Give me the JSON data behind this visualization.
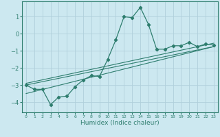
{
  "xlabel": "Humidex (Indice chaleur)",
  "ylabel": "",
  "bg_color": "#cce8f0",
  "grid_color": "#b0d0db",
  "line_color": "#2e7d6e",
  "xlim": [
    -0.5,
    23.5
  ],
  "ylim": [
    -4.6,
    1.9
  ],
  "yticks": [
    1,
    0,
    -1,
    -2,
    -3,
    -4
  ],
  "xticks": [
    0,
    1,
    2,
    3,
    4,
    5,
    6,
    7,
    8,
    9,
    10,
    11,
    12,
    13,
    14,
    15,
    16,
    17,
    18,
    19,
    20,
    21,
    22,
    23
  ],
  "main_x": [
    0,
    1,
    2,
    3,
    4,
    5,
    6,
    7,
    8,
    9,
    10,
    11,
    12,
    13,
    14,
    15,
    16,
    17,
    18,
    19,
    20,
    21,
    22,
    23
  ],
  "main_y": [
    -3.0,
    -3.25,
    -3.25,
    -4.15,
    -3.7,
    -3.65,
    -3.1,
    -2.7,
    -2.45,
    -2.5,
    -1.5,
    -0.35,
    1.0,
    0.95,
    1.55,
    0.55,
    -0.9,
    -0.9,
    -0.7,
    -0.7,
    -0.5,
    -0.75,
    -0.6,
    -0.65
  ],
  "line1_x": [
    0,
    23
  ],
  "line1_y": [
    -2.9,
    -0.55
  ],
  "line2_x": [
    0,
    23
  ],
  "line2_y": [
    -3.0,
    -0.75
  ],
  "line3_x": [
    0,
    23
  ],
  "line3_y": [
    -3.5,
    -0.75
  ]
}
